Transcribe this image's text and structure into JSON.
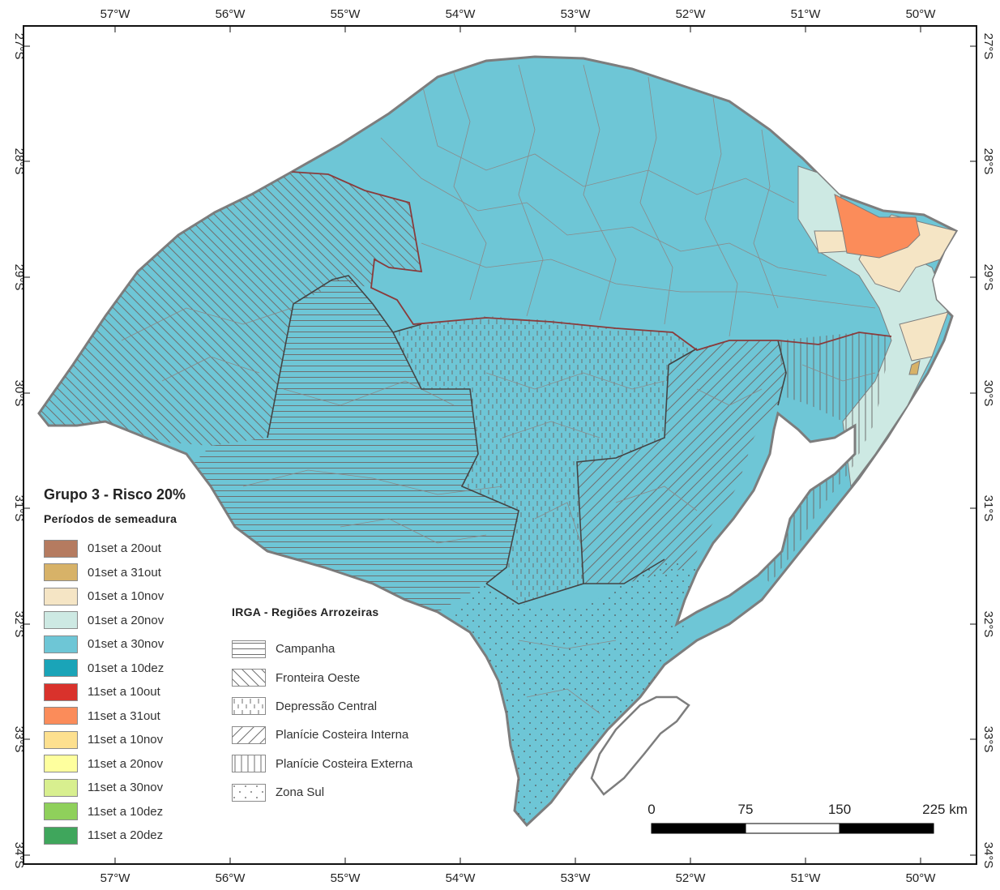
{
  "map": {
    "lon_labels": [
      "57°W",
      "56°W",
      "55°W",
      "54°W",
      "53°W",
      "52°W",
      "51°W",
      "50°W"
    ],
    "lat_labels": [
      "27°S",
      "28°S",
      "29°S",
      "30°S",
      "31°S",
      "32°S",
      "33°S",
      "34°S"
    ]
  },
  "legend": {
    "title": "Grupo 3 - Risco 20%",
    "subtitle": "Períodos de semeadura",
    "items": [
      {
        "label": "01set a 20out",
        "color": "#b57b60"
      },
      {
        "label": "01set a 31out",
        "color": "#d7b268"
      },
      {
        "label": "01set a 10nov",
        "color": "#f5e5c5"
      },
      {
        "label": "01set a 20nov",
        "color": "#cde9e3"
      },
      {
        "label": "01set a 30nov",
        "color": "#6ec6d6"
      },
      {
        "label": "01set a 10dez",
        "color": "#1aa4b8"
      },
      {
        "label": "11set a 10out",
        "color": "#d9322c"
      },
      {
        "label": "11set a 31out",
        "color": "#fb8c5a"
      },
      {
        "label": "11set a 10nov",
        "color": "#fde08f"
      },
      {
        "label": "11set a 20nov",
        "color": "#feff9e"
      },
      {
        "label": "11set a 30nov",
        "color": "#d8ef8f"
      },
      {
        "label": "11set a 10dez",
        "color": "#8fd05b"
      },
      {
        "label": "11set a 20dez",
        "color": "#3fa65c"
      }
    ]
  },
  "regions": {
    "title": "IRGA - Regiões Arrozeiras",
    "items": [
      {
        "label": "Campanha",
        "pattern": "horizontal"
      },
      {
        "label": "Fronteira Oeste",
        "pattern": "back-diagonal"
      },
      {
        "label": "Depressão Central",
        "pattern": "short-vertical"
      },
      {
        "label": "Planície Costeira Interna",
        "pattern": "forward-diagonal"
      },
      {
        "label": "Planície Costeira Externa",
        "pattern": "vertical"
      },
      {
        "label": "Zona Sul",
        "pattern": "dots"
      }
    ]
  },
  "scale_bar": {
    "labels": [
      "0",
      "75",
      "150",
      "225 km"
    ]
  }
}
